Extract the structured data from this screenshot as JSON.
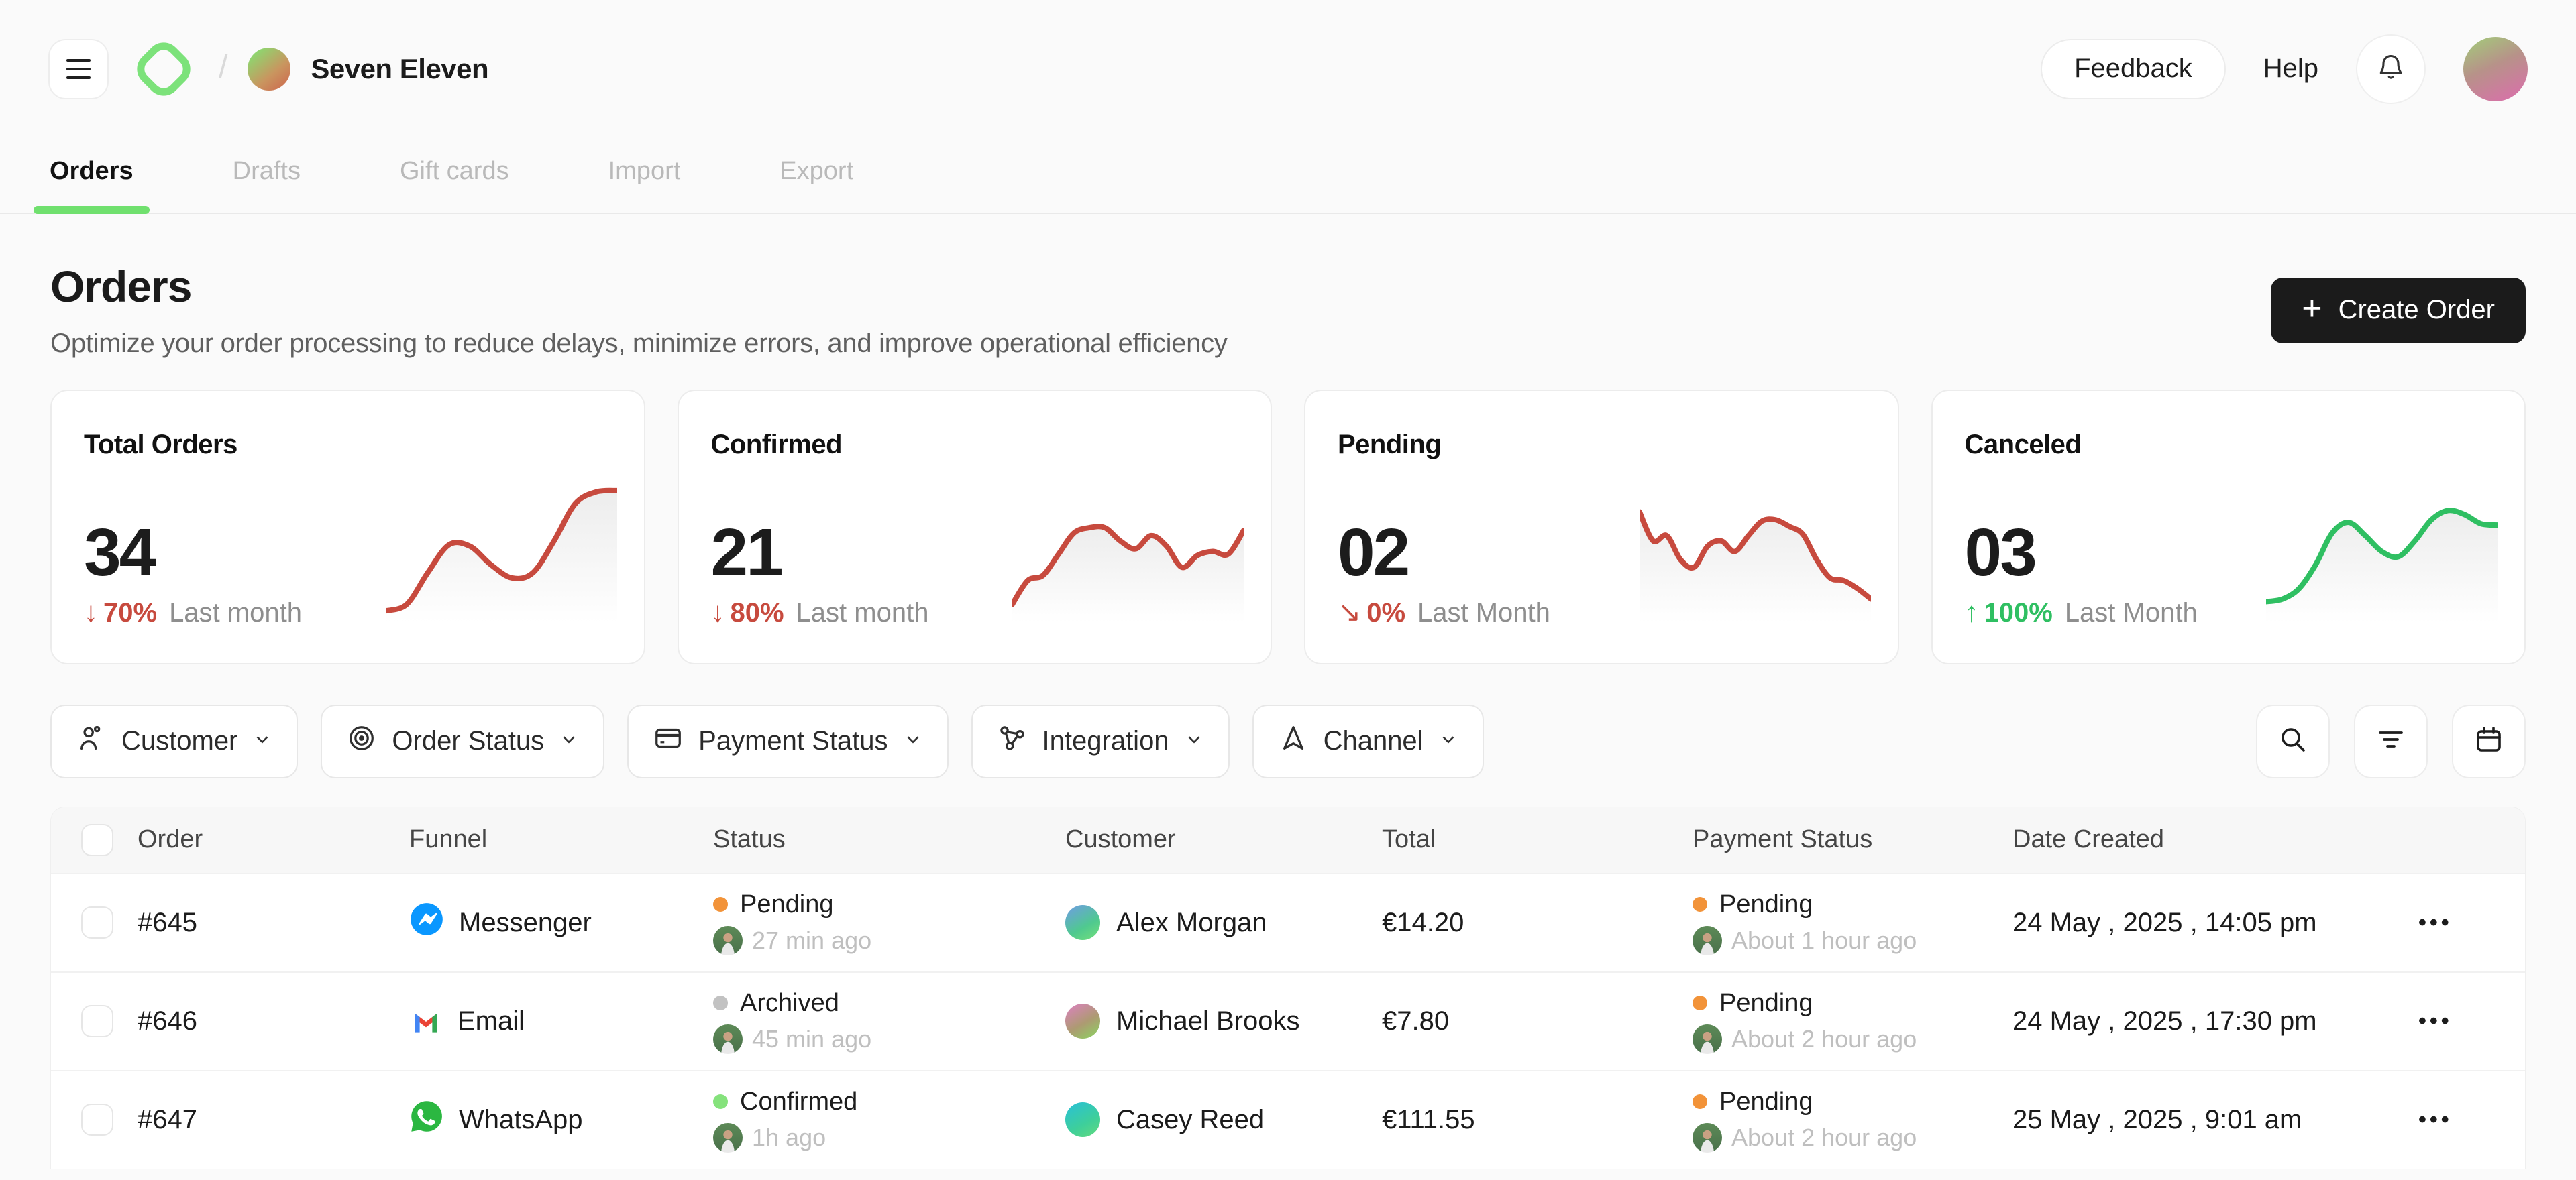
{
  "theme": {
    "accent_green": "#70e06e",
    "negative_red": "#c4453c",
    "positive_green": "#2aaf5d",
    "pending_orange": "#f29339",
    "archived_gray": "#c2c2c2",
    "confirmed_green": "#85e27c",
    "page_bg": "#fafafa",
    "dark_button": "#1b1b1b"
  },
  "header": {
    "workspace": "Seven Eleven",
    "workspace_avatar_bg": "linear-gradient(140deg,#8fd56f 15%,#c9955f 60%,#cd6a4f 95%)",
    "profile_avatar_bg": "linear-gradient(155deg,#a4c87b 5%,#b79289 45%,#d673a7 90%)",
    "feedback_label": "Feedback",
    "help_label": "Help"
  },
  "tabs": [
    {
      "label": "Orders",
      "active": true
    },
    {
      "label": "Drafts",
      "active": false
    },
    {
      "label": "Gift cards",
      "active": false
    },
    {
      "label": "Import",
      "active": false
    },
    {
      "label": "Export",
      "active": false
    }
  ],
  "page": {
    "title": "Orders",
    "subtitle": "Optimize your order processing to reduce delays, minimize errors, and improve operational efficiency",
    "create_order_label": "Create Order",
    "create_order_plus": "+"
  },
  "stats": {
    "cards": [
      {
        "title": "Total Orders",
        "value": "34",
        "arrow": "↓",
        "percent": "70%",
        "period": "Last month",
        "color": "#c74a3e",
        "sparkline": [
          5,
          10,
          34,
          55,
          54,
          40,
          30,
          34,
          58,
          86,
          95,
          96
        ]
      },
      {
        "title": "Confirmed",
        "value": "21",
        "arrow": "↓",
        "percent": "80%",
        "period": "Last month",
        "color": "#c74a3e",
        "sparkline": [
          10,
          28,
          32,
          48,
          64,
          68,
          68,
          58,
          52,
          62,
          54,
          38,
          47,
          50,
          48,
          66
        ]
      },
      {
        "title": "Pending",
        "value": "02",
        "arrow": "↘",
        "percent": "0%",
        "period": "Last Month",
        "color": "#c74a3e",
        "sparkline": [
          80,
          58,
          62,
          44,
          38,
          54,
          58,
          50,
          62,
          73,
          74,
          69,
          63,
          44,
          30,
          28,
          22,
          14
        ]
      },
      {
        "title": "Canceled",
        "value": "03",
        "arrow": "↑",
        "percent": "100%",
        "period": "Last Month",
        "color": "#2fbf62",
        "sparkline": [
          12,
          14,
          22,
          40,
          64,
          72,
          62,
          50,
          46,
          58,
          74,
          81,
          78,
          71,
          70
        ]
      }
    ]
  },
  "filters": [
    {
      "label": "Customer",
      "icon": "user-icon"
    },
    {
      "label": "Order Status",
      "icon": "target-icon"
    },
    {
      "label": "Payment Status",
      "icon": "card-icon"
    },
    {
      "label": "Integration",
      "icon": "integration-icon"
    },
    {
      "label": "Channel",
      "icon": "channel-icon"
    }
  ],
  "table": {
    "columns": {
      "order": "Order",
      "funnel": "Funnel",
      "status": "Status",
      "customer": "Customer",
      "total": "Total",
      "payment": "Payment Status",
      "date": "Date Created"
    },
    "rows": [
      {
        "order": "#645",
        "funnel": "Messenger",
        "funnel_icon": "messenger-icon",
        "status": "Pending",
        "status_color": "#f29339",
        "status_time": "27 min ago",
        "customer": "Alex Morgan",
        "customer_avatar_bg": "linear-gradient(150deg,#6aa3d8 10%,#4fc98f 60%,#6fdd7d 95%)",
        "total": "€14.20",
        "payment_status": "Pending",
        "payment_color": "#f29339",
        "payment_time": "About 1 hour ago",
        "date": "24 May , 2025 , 14:05 pm",
        "menu": "•••"
      },
      {
        "order": "#646",
        "funnel": "Email",
        "funnel_icon": "gmail-icon",
        "status": "Archived",
        "status_color": "#c2c2c2",
        "status_time": "45 min ago",
        "customer": "Michael Brooks",
        "customer_avatar_bg": "linear-gradient(150deg,#d585b4 10%,#ad9a72 55%,#8ecf62 95%)",
        "total": "€7.80",
        "payment_status": "Pending",
        "payment_color": "#f29339",
        "payment_time": "About 2 hour ago",
        "date": "24 May , 2025 , 17:30 pm",
        "menu": "•••"
      },
      {
        "order": "#647",
        "funnel": "WhatsApp",
        "funnel_icon": "whatsapp-icon",
        "status": "Confirmed",
        "status_color": "#85e27c",
        "status_time": "1h ago",
        "customer": "Casey Reed",
        "customer_avatar_bg": "linear-gradient(150deg,#2ec4c9 15%,#3ecf9a 60%,#5fd981 95%)",
        "total": "€111.55",
        "payment_status": "Pending",
        "payment_color": "#f29339",
        "payment_time": "About 2 hour ago",
        "date": "25 May , 2025 , 9:01 am",
        "menu": "•••"
      }
    ]
  }
}
